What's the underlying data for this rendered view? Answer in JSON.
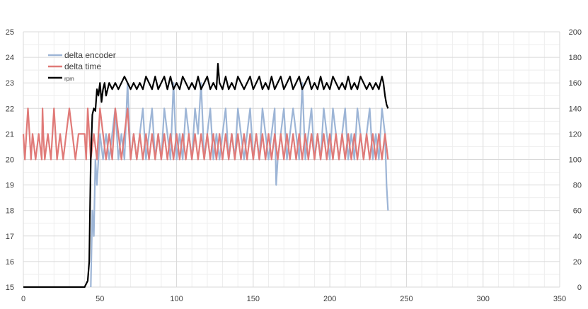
{
  "chart_data": {
    "type": "line",
    "title": "",
    "xlabel": "",
    "ylabel": "",
    "y2label": "",
    "xlim": [
      0,
      350
    ],
    "ylim": [
      15,
      25
    ],
    "y2lim": [
      0,
      200
    ],
    "x_ticks": [
      0,
      50,
      100,
      150,
      200,
      250,
      300,
      350
    ],
    "y_ticks": [
      15,
      16,
      17,
      18,
      19,
      20,
      21,
      22,
      23,
      24,
      25
    ],
    "y2_ticks": [
      0,
      20,
      40,
      60,
      80,
      100,
      120,
      140,
      160,
      180,
      200
    ],
    "grid": true,
    "minor_grid": true,
    "legend_position": "top-left",
    "colors": {
      "delta_encoder": "#9db5d6",
      "delta_time": "#e07a78",
      "rpm": "#000000",
      "grid_major": "#d9d9d9",
      "grid_minor": "#eeeeee"
    },
    "series": [
      {
        "name": "delta encoder",
        "axis": "left",
        "x": [
          44,
          45,
          46,
          47,
          48,
          49,
          50,
          52,
          54,
          56,
          58,
          60,
          62,
          64,
          66,
          68,
          70,
          72,
          74,
          76,
          78,
          80,
          82,
          84,
          86,
          88,
          90,
          92,
          94,
          96,
          98,
          100,
          102,
          104,
          106,
          108,
          110,
          112,
          114,
          116,
          118,
          120,
          122,
          124,
          126,
          128,
          130,
          132,
          134,
          136,
          138,
          140,
          142,
          144,
          146,
          148,
          150,
          152,
          154,
          156,
          158,
          160,
          162,
          164,
          165,
          166,
          168,
          170,
          172,
          174,
          176,
          178,
          180,
          182,
          184,
          186,
          188,
          190,
          192,
          194,
          196,
          198,
          200,
          202,
          204,
          206,
          208,
          210,
          212,
          214,
          216,
          218,
          220,
          222,
          224,
          226,
          228,
          230,
          232,
          234,
          236,
          237,
          238
        ],
        "values": [
          15,
          18,
          17,
          20,
          19,
          20,
          21,
          20,
          21,
          20,
          21,
          22,
          20,
          21,
          20,
          23,
          20,
          21,
          20,
          21,
          22,
          20,
          21,
          22,
          20,
          21,
          20,
          22,
          21,
          20,
          23,
          20,
          21,
          20,
          22,
          21,
          20,
          22,
          21,
          23,
          20,
          21,
          22,
          20,
          21,
          20,
          21,
          22,
          20,
          21,
          20,
          22,
          21,
          20,
          21,
          22,
          20,
          21,
          20,
          22,
          21,
          20,
          21,
          22,
          19,
          20,
          21,
          22,
          20,
          21,
          22,
          21,
          20,
          23,
          20,
          21,
          22,
          20,
          21,
          20,
          22,
          21,
          20,
          22,
          21,
          20,
          21,
          22,
          20,
          21,
          20,
          22,
          21,
          20,
          21,
          22,
          20,
          21,
          20,
          22,
          21,
          19,
          18
        ]
      },
      {
        "name": "delta time",
        "axis": "left",
        "x": [
          0,
          1,
          2,
          3,
          4,
          5,
          6,
          8,
          10,
          12,
          12.5,
          13,
          14,
          16,
          18,
          20,
          22,
          24,
          26,
          28,
          30,
          32,
          34,
          36,
          38,
          40,
          41,
          42,
          44,
          46,
          48,
          50,
          52,
          54,
          56,
          58,
          60,
          62,
          64,
          66,
          68,
          70,
          72,
          74,
          76,
          78,
          80,
          82,
          84,
          86,
          88,
          90,
          92,
          94,
          96,
          98,
          100,
          102,
          104,
          106,
          108,
          110,
          112,
          114,
          116,
          118,
          120,
          122,
          124,
          126,
          128,
          130,
          132,
          134,
          136,
          138,
          140,
          142,
          144,
          146,
          148,
          150,
          152,
          154,
          156,
          158,
          160,
          162,
          164,
          166,
          168,
          170,
          172,
          174,
          176,
          178,
          180,
          182,
          184,
          186,
          188,
          190,
          192,
          194,
          196,
          198,
          200,
          202,
          204,
          206,
          208,
          210,
          212,
          214,
          216,
          218,
          220,
          222,
          224,
          226,
          228,
          230,
          232,
          234,
          236,
          238
        ],
        "values": [
          21,
          20,
          21,
          22,
          21,
          20,
          21,
          20,
          21,
          20,
          22,
          21,
          20,
          21,
          20,
          22,
          20,
          21,
          20,
          21,
          22,
          21,
          20,
          21,
          21,
          21,
          20,
          22,
          20,
          21,
          20,
          22,
          21,
          20,
          21,
          20,
          22,
          21,
          20,
          21,
          22,
          20,
          21,
          20,
          21,
          20,
          21,
          20,
          21,
          20,
          21,
          20,
          21,
          20,
          21,
          20,
          21,
          20,
          21,
          20,
          21,
          20,
          21,
          20,
          21,
          20,
          21,
          20,
          21,
          20,
          21,
          20,
          21,
          20,
          21,
          20,
          21,
          20,
          21,
          20,
          21,
          20,
          21,
          20,
          21,
          20,
          21,
          20,
          21,
          20,
          21,
          20,
          21,
          20,
          21,
          20,
          21,
          20,
          21,
          20,
          21,
          20,
          21,
          20,
          21,
          20,
          21,
          20,
          21,
          20,
          21,
          20,
          21,
          20,
          21,
          20,
          21,
          20,
          21,
          20,
          21,
          20,
          21,
          20,
          21,
          20
        ]
      },
      {
        "name": "rpm",
        "axis": "right",
        "x": [
          0,
          10,
          20,
          30,
          40,
          42,
          43,
          44,
          45,
          46,
          47,
          48,
          49,
          50,
          51,
          52,
          53,
          54,
          56,
          58,
          60,
          62,
          64,
          66,
          68,
          70,
          72,
          74,
          76,
          78,
          80,
          82,
          84,
          86,
          88,
          90,
          92,
          94,
          96,
          98,
          100,
          102,
          104,
          106,
          108,
          110,
          112,
          114,
          116,
          118,
          120,
          122,
          124,
          126,
          127,
          128,
          130,
          132,
          134,
          136,
          138,
          140,
          142,
          144,
          146,
          148,
          150,
          152,
          154,
          156,
          158,
          160,
          162,
          164,
          166,
          168,
          170,
          172,
          174,
          176,
          178,
          180,
          182,
          184,
          186,
          188,
          190,
          192,
          194,
          196,
          198,
          200,
          202,
          204,
          206,
          208,
          210,
          212,
          214,
          216,
          218,
          220,
          222,
          224,
          226,
          228,
          230,
          232,
          234,
          235,
          236,
          237,
          238
        ],
        "values": [
          0,
          0,
          0,
          0,
          0,
          5,
          20,
          100,
          135,
          140,
          138,
          155,
          150,
          160,
          145,
          155,
          160,
          150,
          160,
          155,
          160,
          155,
          160,
          165,
          160,
          155,
          160,
          155,
          160,
          155,
          165,
          160,
          155,
          165,
          155,
          160,
          165,
          155,
          165,
          155,
          160,
          155,
          165,
          160,
          155,
          160,
          155,
          165,
          155,
          160,
          165,
          155,
          160,
          155,
          175,
          160,
          155,
          165,
          155,
          160,
          155,
          165,
          160,
          155,
          160,
          165,
          155,
          160,
          165,
          155,
          160,
          155,
          165,
          155,
          160,
          165,
          155,
          160,
          165,
          155,
          160,
          165,
          155,
          160,
          165,
          155,
          160,
          155,
          165,
          155,
          160,
          155,
          165,
          160,
          155,
          160,
          155,
          165,
          155,
          160,
          155,
          165,
          160,
          155,
          160,
          155,
          160,
          155,
          165,
          160,
          150,
          143,
          140
        ]
      }
    ]
  }
}
